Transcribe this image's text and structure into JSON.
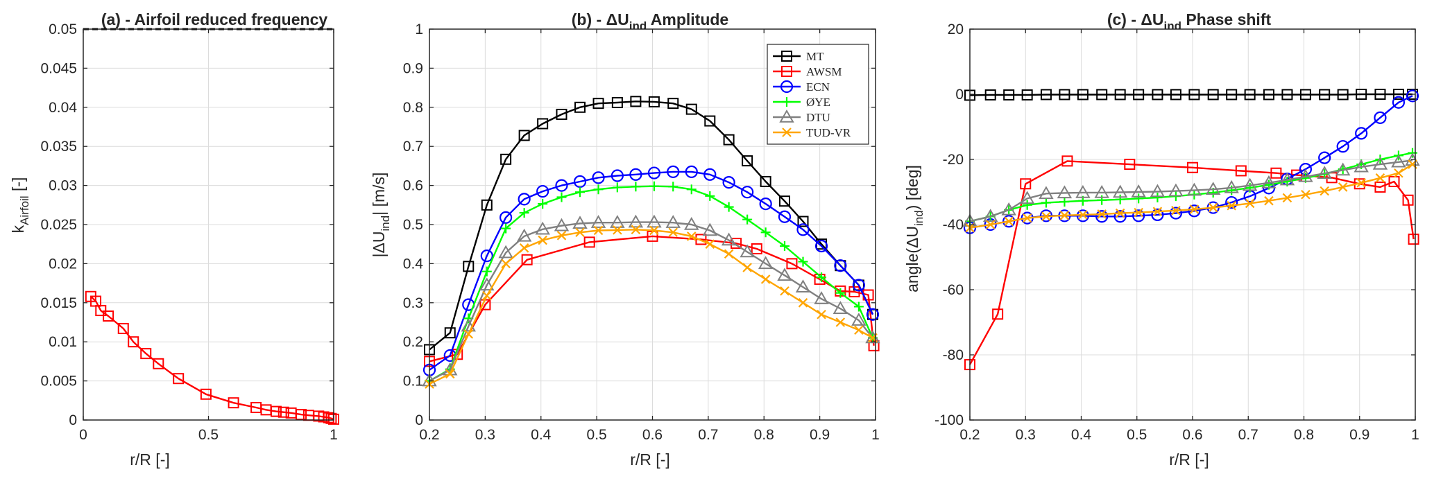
{
  "chart_data": [
    {
      "type": "line",
      "title": "(a) - Airfoil reduced frequency",
      "xlabel": "r/R [-]",
      "ylabel": "k_Airfoil [-]",
      "xlim": [
        0,
        1
      ],
      "ylim": [
        0,
        0.05
      ],
      "xticks": [
        0,
        0.5,
        1
      ],
      "xtick_labels": [
        "0",
        "0.5",
        "1"
      ],
      "yticks": [
        0,
        0.005,
        0.01,
        0.015,
        0.02,
        0.025,
        0.03,
        0.035,
        0.04,
        0.045,
        0.05
      ],
      "ytick_labels": [
        "0",
        "0.005",
        "0.01",
        "0.015",
        "0.02",
        "0.025",
        "0.03",
        "0.035",
        "0.04",
        "0.045",
        "0.05"
      ],
      "grid": true,
      "series": [
        {
          "name": "reference",
          "color": "#000000",
          "style": "dashed",
          "marker": "none",
          "x": [
            0,
            1
          ],
          "y": [
            0.05,
            0.05
          ]
        },
        {
          "name": "AWSM",
          "color": "#ff0000",
          "style": "solid",
          "marker": "square",
          "x": [
            0.03,
            0.05,
            0.07,
            0.1,
            0.16,
            0.2,
            0.25,
            0.3,
            0.38,
            0.49,
            0.6,
            0.69,
            0.73,
            0.77,
            0.8,
            0.83,
            0.87,
            0.9,
            0.94,
            0.96,
            0.98,
            0.99,
            1.0
          ],
          "y": [
            0.0158,
            0.0152,
            0.014,
            0.0133,
            0.0117,
            0.01,
            0.0085,
            0.0072,
            0.0053,
            0.0033,
            0.0022,
            0.0016,
            0.0013,
            0.0011,
            0.001,
            0.0009,
            0.0007,
            0.0006,
            0.0005,
            0.0004,
            0.0003,
            0.0002,
            0.0001
          ]
        }
      ]
    },
    {
      "type": "line",
      "title_prefix": "(b) - ",
      "title_main": "ΔU",
      "title_sub": "ind",
      "title_suffix": " Amplitude",
      "xlabel": "r/R [-]",
      "ylabel_main": "|ΔU",
      "ylabel_sub": "ind",
      "ylabel_suffix": "| [m/s]",
      "xlim": [
        0.2,
        1
      ],
      "ylim": [
        0,
        1
      ],
      "xticks": [
        0.2,
        0.3,
        0.4,
        0.5,
        0.6,
        0.7,
        0.8,
        0.9,
        1
      ],
      "xtick_labels": [
        "0.2",
        "0.3",
        "0.4",
        "0.5",
        "0.6",
        "0.7",
        "0.8",
        "0.9",
        "1"
      ],
      "yticks": [
        0,
        0.1,
        0.2,
        0.3,
        0.4,
        0.5,
        0.6,
        0.7,
        0.8,
        0.9,
        1
      ],
      "ytick_labels": [
        "0",
        "0.1",
        "0.2",
        "0.3",
        "0.4",
        "0.5",
        "0.6",
        "0.7",
        "0.8",
        "0.9",
        "1"
      ],
      "grid": true,
      "legend": "top-right",
      "series": [
        {
          "name": "MT",
          "color": "#000000",
          "marker": "square",
          "x": [
            0.2,
            0.237,
            0.27,
            0.303,
            0.337,
            0.37,
            0.403,
            0.437,
            0.47,
            0.503,
            0.537,
            0.57,
            0.603,
            0.637,
            0.67,
            0.703,
            0.737,
            0.77,
            0.803,
            0.837,
            0.87,
            0.903,
            0.937,
            0.97,
            0.995
          ],
          "y": [
            0.18,
            0.223,
            0.393,
            0.55,
            0.667,
            0.728,
            0.758,
            0.782,
            0.8,
            0.81,
            0.812,
            0.815,
            0.814,
            0.81,
            0.795,
            0.765,
            0.717,
            0.663,
            0.61,
            0.56,
            0.508,
            0.45,
            0.395,
            0.345,
            0.27
          ]
        },
        {
          "name": "AWSM",
          "color": "#ff0000",
          "marker": "square",
          "x": [
            0.2,
            0.25,
            0.3,
            0.375,
            0.487,
            0.6,
            0.687,
            0.75,
            0.787,
            0.85,
            0.9,
            0.937,
            0.962,
            0.987,
            0.997
          ],
          "y": [
            0.15,
            0.168,
            0.295,
            0.41,
            0.455,
            0.47,
            0.462,
            0.452,
            0.438,
            0.4,
            0.36,
            0.33,
            0.328,
            0.32,
            0.19
          ]
        },
        {
          "name": "ECN",
          "color": "#0000ff",
          "marker": "circle",
          "x": [
            0.2,
            0.237,
            0.27,
            0.303,
            0.337,
            0.37,
            0.403,
            0.437,
            0.47,
            0.503,
            0.537,
            0.57,
            0.603,
            0.637,
            0.67,
            0.703,
            0.737,
            0.77,
            0.803,
            0.837,
            0.87,
            0.903,
            0.937,
            0.97,
            0.995
          ],
          "y": [
            0.128,
            0.165,
            0.295,
            0.42,
            0.518,
            0.565,
            0.585,
            0.6,
            0.61,
            0.62,
            0.625,
            0.628,
            0.632,
            0.635,
            0.635,
            0.628,
            0.608,
            0.583,
            0.553,
            0.52,
            0.487,
            0.445,
            0.395,
            0.345,
            0.27
          ]
        },
        {
          "name": "ØYE",
          "color": "#00ff00",
          "marker": "plus",
          "x": [
            0.2,
            0.237,
            0.27,
            0.303,
            0.337,
            0.37,
            0.403,
            0.437,
            0.47,
            0.503,
            0.537,
            0.57,
            0.603,
            0.637,
            0.67,
            0.703,
            0.737,
            0.77,
            0.803,
            0.837,
            0.87,
            0.903,
            0.937,
            0.97,
            0.995
          ],
          "y": [
            0.1,
            0.13,
            0.26,
            0.38,
            0.49,
            0.53,
            0.553,
            0.57,
            0.583,
            0.59,
            0.595,
            0.597,
            0.598,
            0.597,
            0.59,
            0.573,
            0.545,
            0.513,
            0.48,
            0.445,
            0.405,
            0.365,
            0.325,
            0.29,
            0.21
          ]
        },
        {
          "name": "DTU",
          "color": "#808080",
          "marker": "triangle",
          "x": [
            0.2,
            0.237,
            0.27,
            0.303,
            0.337,
            0.37,
            0.403,
            0.437,
            0.47,
            0.503,
            0.537,
            0.57,
            0.603,
            0.637,
            0.67,
            0.703,
            0.737,
            0.77,
            0.803,
            0.837,
            0.87,
            0.903,
            0.937,
            0.97,
            0.995
          ],
          "y": [
            0.1,
            0.128,
            0.24,
            0.345,
            0.428,
            0.47,
            0.488,
            0.497,
            0.503,
            0.505,
            0.505,
            0.506,
            0.506,
            0.505,
            0.5,
            0.485,
            0.46,
            0.43,
            0.4,
            0.37,
            0.34,
            0.31,
            0.285,
            0.255,
            0.21
          ]
        },
        {
          "name": "TUD-VR",
          "color": "#ffa500",
          "marker": "x",
          "x": [
            0.2,
            0.237,
            0.27,
            0.303,
            0.337,
            0.37,
            0.403,
            0.437,
            0.47,
            0.503,
            0.537,
            0.57,
            0.603,
            0.637,
            0.67,
            0.703,
            0.737,
            0.77,
            0.803,
            0.837,
            0.87,
            0.903,
            0.937,
            0.97,
            0.995
          ],
          "y": [
            0.092,
            0.118,
            0.22,
            0.318,
            0.4,
            0.44,
            0.46,
            0.472,
            0.48,
            0.485,
            0.486,
            0.487,
            0.485,
            0.48,
            0.47,
            0.45,
            0.425,
            0.39,
            0.36,
            0.33,
            0.3,
            0.27,
            0.25,
            0.23,
            0.21
          ]
        }
      ]
    },
    {
      "type": "line",
      "title_prefix": "(c) - ",
      "title_main": "ΔU",
      "title_sub": "ind",
      "title_suffix": " Phase shift",
      "xlabel": "r/R [-]",
      "ylabel_main": "angle(ΔU",
      "ylabel_sub": "ind",
      "ylabel_suffix": ") [deg]",
      "xlim": [
        0.2,
        1
      ],
      "ylim": [
        -100,
        20
      ],
      "xticks": [
        0.2,
        0.3,
        0.4,
        0.5,
        0.6,
        0.7,
        0.8,
        0.9,
        1
      ],
      "xtick_labels": [
        "0.2",
        "0.3",
        "0.4",
        "0.5",
        "0.6",
        "0.7",
        "0.8",
        "0.9",
        "1"
      ],
      "yticks": [
        -100,
        -80,
        -60,
        -40,
        -20,
        0,
        20
      ],
      "ytick_labels": [
        "-100",
        "-80",
        "-60",
        "-40",
        "-20",
        "0",
        "20"
      ],
      "grid": true,
      "series": [
        {
          "name": "MT",
          "color": "#000000",
          "marker": "square",
          "x": [
            0.2,
            0.237,
            0.27,
            0.303,
            0.337,
            0.37,
            0.403,
            0.437,
            0.47,
            0.503,
            0.537,
            0.57,
            0.603,
            0.637,
            0.67,
            0.703,
            0.737,
            0.77,
            0.803,
            0.837,
            0.87,
            0.903,
            0.937,
            0.97,
            0.995
          ],
          "y": [
            -0.3,
            -0.2,
            -0.2,
            -0.2,
            -0.1,
            -0.1,
            -0.1,
            -0.1,
            -0.1,
            -0.1,
            -0.1,
            -0.1,
            -0.1,
            -0.1,
            -0.1,
            -0.1,
            -0.1,
            -0.1,
            -0.1,
            -0.1,
            -0.1,
            0,
            0,
            0,
            0
          ]
        },
        {
          "name": "AWSM",
          "color": "#ff0000",
          "marker": "square",
          "x": [
            0.2,
            0.25,
            0.3,
            0.375,
            0.487,
            0.6,
            0.687,
            0.75,
            0.787,
            0.85,
            0.9,
            0.937,
            0.962,
            0.987,
            0.997
          ],
          "y": [
            -83,
            -67.5,
            -27.5,
            -20.5,
            -21.5,
            -22.5,
            -23.5,
            -24.2,
            -24.8,
            -25.6,
            -27.5,
            -28.5,
            -26.8,
            -32.5,
            -44.5
          ]
        },
        {
          "name": "ECN",
          "color": "#0000ff",
          "marker": "circle",
          "x": [
            0.2,
            0.237,
            0.27,
            0.303,
            0.337,
            0.37,
            0.403,
            0.437,
            0.47,
            0.503,
            0.537,
            0.57,
            0.603,
            0.637,
            0.67,
            0.703,
            0.737,
            0.77,
            0.803,
            0.837,
            0.87,
            0.903,
            0.937,
            0.97,
            0.995
          ],
          "y": [
            -41,
            -40,
            -39,
            -38,
            -37.3,
            -37.3,
            -37.3,
            -37.5,
            -37.5,
            -37.3,
            -37,
            -36.5,
            -35.8,
            -34.8,
            -33.2,
            -31.3,
            -28.8,
            -26,
            -23,
            -19.5,
            -16,
            -12,
            -7.2,
            -2.5,
            -0.5
          ]
        },
        {
          "name": "ØYE",
          "color": "#00ff00",
          "marker": "plus",
          "x": [
            0.2,
            0.237,
            0.27,
            0.303,
            0.337,
            0.37,
            0.403,
            0.437,
            0.47,
            0.503,
            0.537,
            0.57,
            0.603,
            0.637,
            0.67,
            0.703,
            0.737,
            0.77,
            0.803,
            0.837,
            0.87,
            0.903,
            0.937,
            0.97,
            0.995
          ],
          "y": [
            -39,
            -37.5,
            -35.5,
            -34,
            -33.3,
            -33,
            -32.7,
            -32.5,
            -32.3,
            -32,
            -31.7,
            -31.3,
            -30.8,
            -30.2,
            -29.5,
            -28.7,
            -27.8,
            -26.8,
            -25.7,
            -24.5,
            -23,
            -21.5,
            -20,
            -18.8,
            -18
          ]
        },
        {
          "name": "DTU",
          "color": "#808080",
          "marker": "triangle",
          "x": [
            0.2,
            0.237,
            0.27,
            0.303,
            0.337,
            0.37,
            0.403,
            0.437,
            0.47,
            0.503,
            0.537,
            0.57,
            0.603,
            0.637,
            0.67,
            0.703,
            0.737,
            0.77,
            0.803,
            0.837,
            0.87,
            0.903,
            0.937,
            0.97,
            0.995
          ],
          "y": [
            -39,
            -37.5,
            -35.5,
            -32,
            -30.5,
            -30.3,
            -30.2,
            -30.2,
            -30.1,
            -30,
            -29.9,
            -29.7,
            -29.5,
            -29.2,
            -28.7,
            -28,
            -27.2,
            -26.3,
            -25.3,
            -24.3,
            -23.3,
            -22.3,
            -21.5,
            -20.8,
            -20.3
          ]
        },
        {
          "name": "TUD-VR",
          "color": "#ffa500",
          "marker": "x",
          "x": [
            0.2,
            0.237,
            0.27,
            0.303,
            0.337,
            0.37,
            0.403,
            0.437,
            0.47,
            0.503,
            0.537,
            0.57,
            0.603,
            0.637,
            0.67,
            0.703,
            0.737,
            0.77,
            0.803,
            0.837,
            0.87,
            0.903,
            0.937,
            0.97,
            0.995
          ],
          "y": [
            -41,
            -40,
            -39,
            -38,
            -37.5,
            -37.2,
            -37,
            -36.8,
            -36.5,
            -36.3,
            -36,
            -35.7,
            -35.3,
            -34.8,
            -34.2,
            -33.5,
            -32.7,
            -31.8,
            -30.8,
            -29.7,
            -28.5,
            -27.2,
            -25.7,
            -24.2,
            -21.5
          ]
        }
      ]
    }
  ]
}
